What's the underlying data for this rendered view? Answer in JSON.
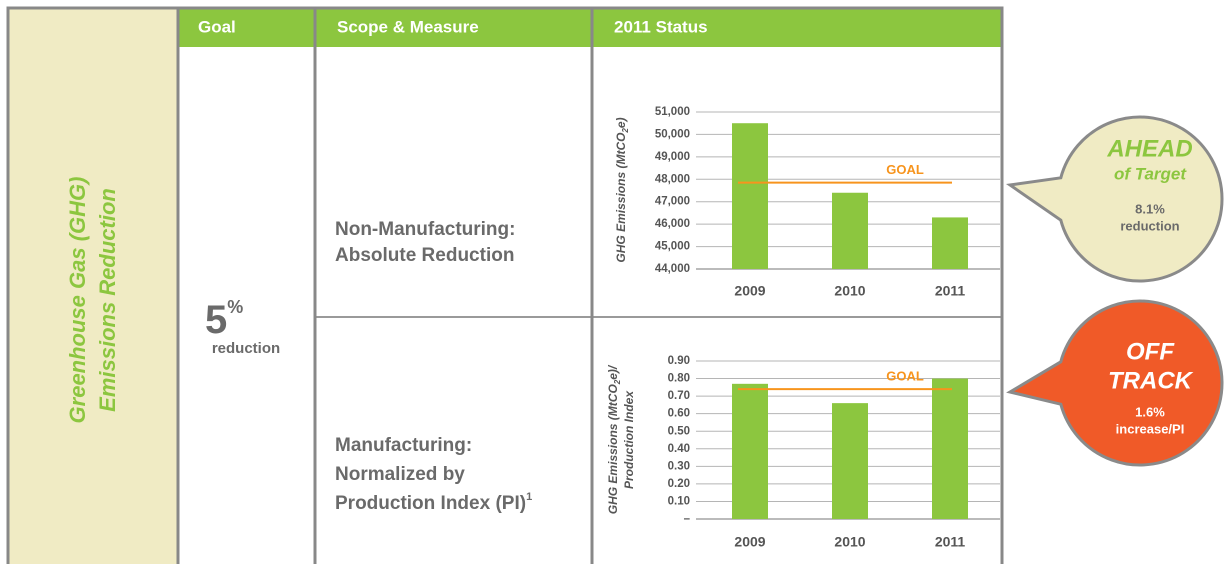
{
  "sidebar": {
    "lines": [
      "Greenhouse Gas (GHG)",
      "Emissions Reduction"
    ]
  },
  "header": [
    "Goal",
    "Scope & Measure",
    "2011 Status"
  ],
  "goal": {
    "value": "5",
    "unit": "%",
    "label": "reduction"
  },
  "rows": [
    {
      "scope": [
        "Non-Manufacturing:",
        "Absolute Reduction"
      ],
      "callout": {
        "title": [
          "AHEAD",
          "of Target"
        ],
        "detail": [
          "8.1%",
          "reduction"
        ]
      }
    },
    {
      "scope": [
        "Manufacturing:",
        "Normalized by",
        "Production Index (PI)"
      ],
      "scope_note": "1",
      "callout": {
        "title": [
          "OFF",
          "TRACK"
        ],
        "detail": [
          "1.6%",
          "increase/PI"
        ]
      }
    }
  ],
  "chart_data": [
    {
      "type": "bar",
      "ylabel": [
        [
          "GHG Emissions (MtCO",
          "2",
          "e)"
        ]
      ],
      "categories": [
        "2009",
        "2010",
        "2011"
      ],
      "values": [
        50500,
        47400,
        46300
      ],
      "color": "#8cc63f",
      "ylim": [
        44000,
        51000
      ],
      "yticks": [
        {
          "value": 44000,
          "label": "44,000"
        },
        {
          "value": 45000,
          "label": "45,000"
        },
        {
          "value": 46000,
          "label": "46,000"
        },
        {
          "value": 47000,
          "label": "47,000"
        },
        {
          "value": 48000,
          "label": "48,000"
        },
        {
          "value": 49000,
          "label": "49,000"
        },
        {
          "value": 50000,
          "label": "50,000"
        },
        {
          "value": 51000,
          "label": "51,000"
        }
      ],
      "grid": true,
      "goal": {
        "label": "GOAL",
        "value": 47850,
        "color": "#f7941d"
      }
    },
    {
      "type": "bar",
      "ylabel": [
        [
          "GHG Emissions (MtCO",
          "2",
          "e)/"
        ],
        [
          "Production Index"
        ]
      ],
      "categories": [
        "2009",
        "2010",
        "2011"
      ],
      "values": [
        0.77,
        0.66,
        0.8
      ],
      "color": "#8cc63f",
      "ylim": [
        0,
        0.9
      ],
      "yticks": [
        {
          "value": 0,
          "label": "–"
        },
        {
          "value": 0.1,
          "label": "0.10"
        },
        {
          "value": 0.2,
          "label": "0.20"
        },
        {
          "value": 0.3,
          "label": "0.30"
        },
        {
          "value": 0.4,
          "label": "0.40"
        },
        {
          "value": 0.5,
          "label": "0.50"
        },
        {
          "value": 0.6,
          "label": "0.60"
        },
        {
          "value": 0.7,
          "label": "0.70"
        },
        {
          "value": 0.8,
          "label": "0.80"
        },
        {
          "value": 0.9,
          "label": "0.90"
        }
      ],
      "grid": true,
      "goal": {
        "label": "GOAL",
        "value": 0.74,
        "color": "#f7941d"
      }
    }
  ]
}
